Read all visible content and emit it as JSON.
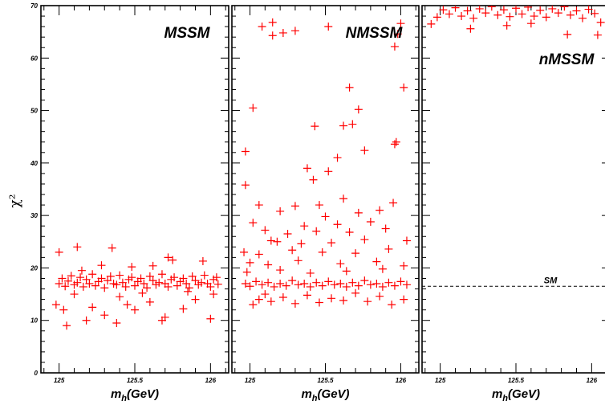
{
  "chart_data": [
    {
      "type": "scatter",
      "title": "MSSM",
      "xlabel": "m_h(GeV)",
      "ylabel": "χ²",
      "xlim": [
        124.88,
        126.12
      ],
      "ylim": [
        0,
        70
      ],
      "xticks": [
        "125",
        "125.5",
        "126"
      ],
      "yticks": [
        "0",
        "10",
        "20",
        "30",
        "40",
        "50",
        "60",
        "70"
      ],
      "marker": "+",
      "color": "#ff0000",
      "series": [
        {
          "values": [
            {
              "x": 125.0,
              "y": 23.0
            },
            {
              "x": 125.12,
              "y": 24.0
            },
            {
              "x": 125.35,
              "y": 23.8
            },
            {
              "x": 125.72,
              "y": 22.0
            },
            {
              "x": 125.75,
              "y": 21.5
            },
            {
              "x": 125.95,
              "y": 21.3
            },
            {
              "x": 125.05,
              "y": 9.0
            },
            {
              "x": 125.18,
              "y": 10.0
            },
            {
              "x": 125.38,
              "y": 9.5
            },
            {
              "x": 125.68,
              "y": 10.0
            },
            {
              "x": 125.7,
              "y": 10.6
            },
            {
              "x": 126.0,
              "y": 10.3
            },
            {
              "x": 124.98,
              "y": 13.0
            },
            {
              "x": 125.03,
              "y": 12.0
            },
            {
              "x": 125.22,
              "y": 12.5
            },
            {
              "x": 125.3,
              "y": 11.0
            },
            {
              "x": 125.45,
              "y": 13.0
            },
            {
              "x": 125.5,
              "y": 12.0
            },
            {
              "x": 125.6,
              "y": 13.5
            },
            {
              "x": 125.82,
              "y": 12.2
            },
            {
              "x": 125.9,
              "y": 14.0
            },
            {
              "x": 125.1,
              "y": 15.0
            },
            {
              "x": 125.4,
              "y": 14.5
            },
            {
              "x": 125.55,
              "y": 15.2
            },
            {
              "x": 125.85,
              "y": 15.5
            },
            {
              "x": 126.02,
              "y": 15.0
            },
            {
              "x": 125.28,
              "y": 20.5
            },
            {
              "x": 125.48,
              "y": 20.2
            },
            {
              "x": 125.62,
              "y": 20.4
            },
            {
              "x": 125.15,
              "y": 19.5
            },
            {
              "x": 125.0,
              "y": 17.0
            },
            {
              "x": 125.02,
              "y": 18.0
            },
            {
              "x": 125.04,
              "y": 16.5
            },
            {
              "x": 125.06,
              "y": 17.5
            },
            {
              "x": 125.08,
              "y": 18.5
            },
            {
              "x": 125.1,
              "y": 16.8
            },
            {
              "x": 125.12,
              "y": 17.2
            },
            {
              "x": 125.14,
              "y": 18.2
            },
            {
              "x": 125.16,
              "y": 16.4
            },
            {
              "x": 125.18,
              "y": 17.8
            },
            {
              "x": 125.2,
              "y": 17.0
            },
            {
              "x": 125.22,
              "y": 18.8
            },
            {
              "x": 125.24,
              "y": 16.6
            },
            {
              "x": 125.26,
              "y": 17.4
            },
            {
              "x": 125.28,
              "y": 18.0
            },
            {
              "x": 125.3,
              "y": 16.2
            },
            {
              "x": 125.32,
              "y": 17.6
            },
            {
              "x": 125.34,
              "y": 18.4
            },
            {
              "x": 125.36,
              "y": 17.0
            },
            {
              "x": 125.38,
              "y": 16.8
            },
            {
              "x": 125.4,
              "y": 18.6
            },
            {
              "x": 125.42,
              "y": 17.2
            },
            {
              "x": 125.44,
              "y": 16.4
            },
            {
              "x": 125.46,
              "y": 17.8
            },
            {
              "x": 125.48,
              "y": 18.2
            },
            {
              "x": 125.5,
              "y": 16.6
            },
            {
              "x": 125.52,
              "y": 17.4
            },
            {
              "x": 125.54,
              "y": 18.0
            },
            {
              "x": 125.56,
              "y": 17.0
            },
            {
              "x": 125.58,
              "y": 16.2
            },
            {
              "x": 125.6,
              "y": 18.4
            },
            {
              "x": 125.62,
              "y": 17.6
            },
            {
              "x": 125.64,
              "y": 16.8
            },
            {
              "x": 125.66,
              "y": 17.2
            },
            {
              "x": 125.68,
              "y": 18.8
            },
            {
              "x": 125.7,
              "y": 17.0
            },
            {
              "x": 125.72,
              "y": 16.4
            },
            {
              "x": 125.74,
              "y": 17.8
            },
            {
              "x": 125.76,
              "y": 18.2
            },
            {
              "x": 125.78,
              "y": 16.6
            },
            {
              "x": 125.8,
              "y": 17.4
            },
            {
              "x": 125.82,
              "y": 18.0
            },
            {
              "x": 125.84,
              "y": 17.0
            },
            {
              "x": 125.86,
              "y": 16.2
            },
            {
              "x": 125.88,
              "y": 18.4
            },
            {
              "x": 125.9,
              "y": 17.6
            },
            {
              "x": 125.92,
              "y": 16.8
            },
            {
              "x": 125.94,
              "y": 17.2
            },
            {
              "x": 125.96,
              "y": 18.6
            },
            {
              "x": 125.98,
              "y": 17.0
            },
            {
              "x": 126.0,
              "y": 16.4
            },
            {
              "x": 126.02,
              "y": 17.8
            },
            {
              "x": 126.04,
              "y": 18.2
            },
            {
              "x": 126.05,
              "y": 16.9
            }
          ]
        }
      ]
    },
    {
      "type": "scatter",
      "title": "NMSSM",
      "xlabel": "m_h(GeV)",
      "ylabel": "",
      "xlim": [
        124.88,
        126.12
      ],
      "ylim": [
        0,
        70
      ],
      "xticks": [
        "125",
        "125.5",
        "126"
      ],
      "marker": "+",
      "color": "#ff0000",
      "series": [
        {
          "values": [
            {
              "x": 125.08,
              "y": 66.0
            },
            {
              "x": 125.15,
              "y": 66.8
            },
            {
              "x": 125.15,
              "y": 64.3
            },
            {
              "x": 125.22,
              "y": 64.8
            },
            {
              "x": 125.3,
              "y": 65.2
            },
            {
              "x": 125.52,
              "y": 66.0
            },
            {
              "x": 125.96,
              "y": 62.2
            },
            {
              "x": 126.0,
              "y": 66.6
            },
            {
              "x": 125.98,
              "y": 64.6
            },
            {
              "x": 125.66,
              "y": 54.4
            },
            {
              "x": 126.02,
              "y": 54.4
            },
            {
              "x": 125.72,
              "y": 50.2
            },
            {
              "x": 125.02,
              "y": 50.5
            },
            {
              "x": 125.62,
              "y": 47.1
            },
            {
              "x": 125.68,
              "y": 47.4
            },
            {
              "x": 125.43,
              "y": 47.0
            },
            {
              "x": 125.97,
              "y": 44.0
            },
            {
              "x": 125.96,
              "y": 43.6
            },
            {
              "x": 125.76,
              "y": 42.4
            },
            {
              "x": 124.97,
              "y": 42.2
            },
            {
              "x": 125.58,
              "y": 41.0
            },
            {
              "x": 125.38,
              "y": 39.0
            },
            {
              "x": 125.52,
              "y": 38.4
            },
            {
              "x": 125.42,
              "y": 36.8
            },
            {
              "x": 124.97,
              "y": 35.8
            },
            {
              "x": 125.62,
              "y": 33.2
            },
            {
              "x": 125.46,
              "y": 32.0
            },
            {
              "x": 125.06,
              "y": 32.0
            },
            {
              "x": 125.95,
              "y": 32.4
            },
            {
              "x": 125.3,
              "y": 31.8
            },
            {
              "x": 125.2,
              "y": 30.8
            },
            {
              "x": 125.5,
              "y": 29.8
            },
            {
              "x": 125.72,
              "y": 30.5
            },
            {
              "x": 125.86,
              "y": 31.0
            },
            {
              "x": 125.02,
              "y": 28.6
            },
            {
              "x": 125.36,
              "y": 28.0
            },
            {
              "x": 125.58,
              "y": 28.3
            },
            {
              "x": 125.8,
              "y": 28.8
            },
            {
              "x": 125.1,
              "y": 27.2
            },
            {
              "x": 125.25,
              "y": 26.5
            },
            {
              "x": 125.44,
              "y": 27.0
            },
            {
              "x": 125.66,
              "y": 26.8
            },
            {
              "x": 125.9,
              "y": 27.5
            },
            {
              "x": 125.14,
              "y": 25.2
            },
            {
              "x": 125.18,
              "y": 25.0
            },
            {
              "x": 125.34,
              "y": 24.6
            },
            {
              "x": 125.54,
              "y": 24.8
            },
            {
              "x": 125.76,
              "y": 25.4
            },
            {
              "x": 126.04,
              "y": 25.2
            },
            {
              "x": 124.96,
              "y": 23.0
            },
            {
              "x": 125.06,
              "y": 22.6
            },
            {
              "x": 125.28,
              "y": 23.4
            },
            {
              "x": 125.48,
              "y": 23.0
            },
            {
              "x": 125.7,
              "y": 22.8
            },
            {
              "x": 125.92,
              "y": 23.6
            },
            {
              "x": 125.0,
              "y": 21.0
            },
            {
              "x": 125.12,
              "y": 20.6
            },
            {
              "x": 125.32,
              "y": 21.4
            },
            {
              "x": 125.6,
              "y": 20.8
            },
            {
              "x": 125.84,
              "y": 21.2
            },
            {
              "x": 126.02,
              "y": 20.4
            },
            {
              "x": 124.98,
              "y": 19.2
            },
            {
              "x": 125.2,
              "y": 19.6
            },
            {
              "x": 125.4,
              "y": 19.0
            },
            {
              "x": 125.64,
              "y": 19.4
            },
            {
              "x": 125.88,
              "y": 19.8
            },
            {
              "x": 124.97,
              "y": 17.0
            },
            {
              "x": 125.0,
              "y": 16.5
            },
            {
              "x": 125.04,
              "y": 17.4
            },
            {
              "x": 125.08,
              "y": 16.8
            },
            {
              "x": 125.12,
              "y": 17.2
            },
            {
              "x": 125.16,
              "y": 16.4
            },
            {
              "x": 125.2,
              "y": 17.0
            },
            {
              "x": 125.24,
              "y": 16.6
            },
            {
              "x": 125.28,
              "y": 17.6
            },
            {
              "x": 125.32,
              "y": 16.8
            },
            {
              "x": 125.36,
              "y": 17.0
            },
            {
              "x": 125.4,
              "y": 16.4
            },
            {
              "x": 125.44,
              "y": 17.2
            },
            {
              "x": 125.48,
              "y": 16.6
            },
            {
              "x": 125.52,
              "y": 17.4
            },
            {
              "x": 125.56,
              "y": 16.8
            },
            {
              "x": 125.6,
              "y": 17.0
            },
            {
              "x": 125.64,
              "y": 16.4
            },
            {
              "x": 125.68,
              "y": 17.2
            },
            {
              "x": 125.72,
              "y": 16.6
            },
            {
              "x": 125.76,
              "y": 17.6
            },
            {
              "x": 125.8,
              "y": 16.8
            },
            {
              "x": 125.84,
              "y": 17.0
            },
            {
              "x": 125.88,
              "y": 16.4
            },
            {
              "x": 125.92,
              "y": 17.2
            },
            {
              "x": 125.96,
              "y": 16.6
            },
            {
              "x": 126.0,
              "y": 17.4
            },
            {
              "x": 126.04,
              "y": 16.8
            },
            {
              "x": 125.02,
              "y": 13.0
            },
            {
              "x": 125.06,
              "y": 14.0
            },
            {
              "x": 125.1,
              "y": 15.0
            },
            {
              "x": 125.14,
              "y": 13.6
            },
            {
              "x": 125.22,
              "y": 14.4
            },
            {
              "x": 125.3,
              "y": 13.2
            },
            {
              "x": 125.38,
              "y": 14.8
            },
            {
              "x": 125.46,
              "y": 13.4
            },
            {
              "x": 125.54,
              "y": 14.2
            },
            {
              "x": 125.62,
              "y": 13.8
            },
            {
              "x": 125.7,
              "y": 15.2
            },
            {
              "x": 125.78,
              "y": 13.6
            },
            {
              "x": 125.86,
              "y": 14.6
            },
            {
              "x": 125.94,
              "y": 13.0
            },
            {
              "x": 126.02,
              "y": 14.0
            }
          ]
        }
      ]
    },
    {
      "type": "scatter",
      "title": "nMSSM",
      "xlabel": "m_h(GeV)",
      "ylabel": "",
      "xlim": [
        124.88,
        126.12
      ],
      "ylim": [
        0,
        70
      ],
      "xticks": [
        "125",
        "125.5",
        "126"
      ],
      "marker": "+",
      "color": "#ff0000",
      "reference_line": {
        "label": "SM",
        "y": 16.5,
        "style": "dashed"
      },
      "series": [
        {
          "values": [
            {
              "x": 124.94,
              "y": 66.5
            },
            {
              "x": 124.98,
              "y": 67.8
            },
            {
              "x": 125.02,
              "y": 69.2
            },
            {
              "x": 125.06,
              "y": 68.4
            },
            {
              "x": 125.1,
              "y": 69.6
            },
            {
              "x": 125.14,
              "y": 68.0
            },
            {
              "x": 125.18,
              "y": 69.0
            },
            {
              "x": 125.22,
              "y": 67.6
            },
            {
              "x": 125.26,
              "y": 69.4
            },
            {
              "x": 125.3,
              "y": 68.6
            },
            {
              "x": 125.34,
              "y": 69.8
            },
            {
              "x": 125.38,
              "y": 68.2
            },
            {
              "x": 125.42,
              "y": 69.2
            },
            {
              "x": 125.46,
              "y": 67.9
            },
            {
              "x": 125.5,
              "y": 69.5
            },
            {
              "x": 125.54,
              "y": 68.4
            },
            {
              "x": 125.58,
              "y": 69.7
            },
            {
              "x": 125.62,
              "y": 68.0
            },
            {
              "x": 125.66,
              "y": 69.1
            },
            {
              "x": 125.7,
              "y": 67.8
            },
            {
              "x": 125.74,
              "y": 69.4
            },
            {
              "x": 125.78,
              "y": 68.6
            },
            {
              "x": 125.82,
              "y": 69.8
            },
            {
              "x": 125.86,
              "y": 68.2
            },
            {
              "x": 125.9,
              "y": 69.0
            },
            {
              "x": 125.94,
              "y": 67.6
            },
            {
              "x": 125.98,
              "y": 69.3
            },
            {
              "x": 126.02,
              "y": 68.5
            },
            {
              "x": 126.06,
              "y": 66.8
            },
            {
              "x": 125.2,
              "y": 65.6
            },
            {
              "x": 125.44,
              "y": 66.2
            },
            {
              "x": 125.84,
              "y": 64.5
            },
            {
              "x": 126.04,
              "y": 64.4
            },
            {
              "x": 125.6,
              "y": 66.6
            }
          ]
        }
      ]
    }
  ]
}
